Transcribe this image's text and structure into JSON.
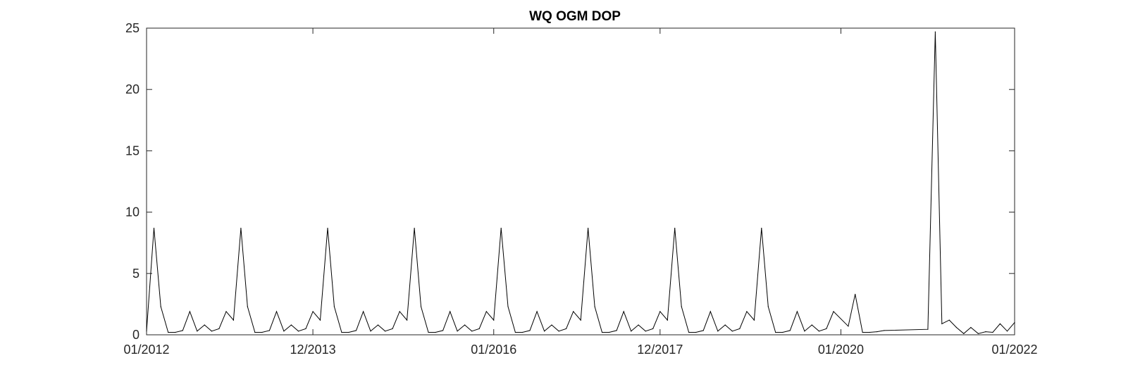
{
  "chart_data": {
    "type": "line",
    "title": "WQ OGM DOP",
    "xlabel": "",
    "ylabel": "",
    "grid": false,
    "x_axis_type": "date",
    "xlim": [
      "2012-01-01",
      "2022-01-01"
    ],
    "ylim": [
      0,
      25
    ],
    "x_ticks": [
      {
        "date": "2012-01-01",
        "label": "01/2012"
      },
      {
        "date": "2013-12-01",
        "label": "12/2013"
      },
      {
        "date": "2016-01-01",
        "label": "01/2016"
      },
      {
        "date": "2017-12-01",
        "label": "12/2017"
      },
      {
        "date": "2020-01-01",
        "label": "01/2020"
      },
      {
        "date": "2022-01-01",
        "label": "01/2022"
      }
    ],
    "y_ticks": [
      0,
      5,
      10,
      15,
      20,
      25
    ],
    "series": [
      {
        "color": "#000000",
        "x": [
          "2012-01-01",
          "2012-02-01",
          "2012-03-01",
          "2012-04-01",
          "2012-05-01",
          "2012-06-01",
          "2012-07-01",
          "2012-08-01",
          "2012-09-01",
          "2012-10-01",
          "2012-11-01",
          "2012-12-01",
          "2013-01-01",
          "2013-02-01",
          "2013-03-01",
          "2013-04-01",
          "2013-05-01",
          "2013-06-01",
          "2013-07-01",
          "2013-08-01",
          "2013-09-01",
          "2013-10-01",
          "2013-11-01",
          "2013-12-01",
          "2014-01-01",
          "2014-02-01",
          "2014-03-01",
          "2014-04-01",
          "2014-05-01",
          "2014-06-01",
          "2014-07-01",
          "2014-08-01",
          "2014-09-01",
          "2014-10-01",
          "2014-11-01",
          "2014-12-01",
          "2015-01-01",
          "2015-02-01",
          "2015-03-01",
          "2015-04-01",
          "2015-05-01",
          "2015-06-01",
          "2015-07-01",
          "2015-08-01",
          "2015-09-01",
          "2015-10-01",
          "2015-11-01",
          "2015-12-01",
          "2016-01-01",
          "2016-02-01",
          "2016-03-01",
          "2016-04-01",
          "2016-05-01",
          "2016-06-01",
          "2016-07-01",
          "2016-08-01",
          "2016-09-01",
          "2016-10-01",
          "2016-11-01",
          "2016-12-01",
          "2017-01-01",
          "2017-02-01",
          "2017-03-01",
          "2017-04-01",
          "2017-05-01",
          "2017-06-01",
          "2017-07-01",
          "2017-08-01",
          "2017-09-01",
          "2017-10-01",
          "2017-11-01",
          "2017-12-01",
          "2018-01-01",
          "2018-02-01",
          "2018-03-01",
          "2018-04-01",
          "2018-05-01",
          "2018-06-01",
          "2018-07-01",
          "2018-08-01",
          "2018-09-01",
          "2018-10-01",
          "2018-11-01",
          "2018-12-01",
          "2019-01-01",
          "2019-02-01",
          "2019-03-01",
          "2019-04-01",
          "2019-05-01",
          "2019-06-01",
          "2019-07-01",
          "2019-08-01",
          "2019-09-01",
          "2019-10-01",
          "2019-11-01",
          "2019-12-01",
          "2020-02-01",
          "2020-03-01",
          "2020-04-01",
          "2020-05-01",
          "2020-06-01",
          "2020-07-01",
          "2021-01-01",
          "2021-02-01",
          "2021-03-01",
          "2021-04-01",
          "2021-05-01",
          "2021-06-01",
          "2021-07-01",
          "2021-08-01",
          "2021-09-01",
          "2021-10-01",
          "2021-11-01",
          "2021-12-01",
          "2022-01-01"
        ],
        "y": [
          0.3,
          8.7,
          2.3,
          0.2,
          0.2,
          0.35,
          1.9,
          0.3,
          0.8,
          0.3,
          0.5,
          1.9,
          1.2,
          8.7,
          2.3,
          0.2,
          0.2,
          0.35,
          1.9,
          0.3,
          0.8,
          0.3,
          0.5,
          1.9,
          1.2,
          8.7,
          2.3,
          0.2,
          0.2,
          0.35,
          1.9,
          0.3,
          0.8,
          0.3,
          0.5,
          1.9,
          1.2,
          8.7,
          2.3,
          0.2,
          0.2,
          0.35,
          1.9,
          0.3,
          0.8,
          0.3,
          0.5,
          1.9,
          1.2,
          8.7,
          2.3,
          0.2,
          0.2,
          0.35,
          1.9,
          0.3,
          0.8,
          0.3,
          0.5,
          1.9,
          1.2,
          8.7,
          2.3,
          0.2,
          0.2,
          0.35,
          1.9,
          0.3,
          0.8,
          0.3,
          0.5,
          1.9,
          1.2,
          8.7,
          2.3,
          0.2,
          0.2,
          0.35,
          1.9,
          0.3,
          0.8,
          0.3,
          0.5,
          1.9,
          1.2,
          8.7,
          2.3,
          0.2,
          0.2,
          0.35,
          1.9,
          0.3,
          0.8,
          0.3,
          0.5,
          1.9,
          0.7,
          3.3,
          0.2,
          0.2,
          0.25,
          0.35,
          0.45,
          24.7,
          0.9,
          1.2,
          0.6,
          0.1,
          0.6,
          0.1,
          0.25,
          0.2,
          0.9,
          0.3,
          1.0
        ]
      }
    ]
  }
}
